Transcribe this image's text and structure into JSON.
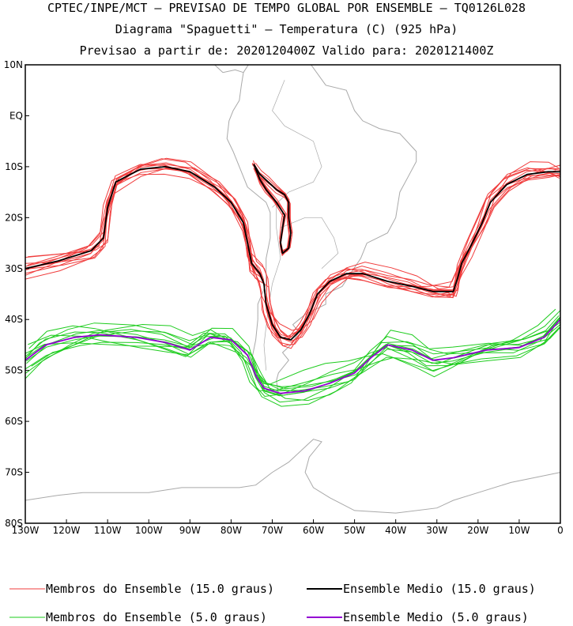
{
  "header": {
    "line1": "CPTEC/INPE/MCT — PREVISAO DE TEMPO GLOBAL POR ENSEMBLE — TQ0126L028",
    "line2": "Diagrama \"Spaguetti\" — Temperatura (C) (925 hPa)",
    "line3": "Previsao a partir de: 2020120400Z  Valido para: 2020121400Z"
  },
  "colors": {
    "members_15": "#f03c3c",
    "mean_15": "#000000",
    "members_5": "#1ecc1e",
    "mean_5": "#9400d3",
    "land": "#a9a9a9"
  },
  "chart_data": {
    "type": "line",
    "map_extent": {
      "lon": [
        -130,
        0
      ],
      "lat": [
        -80,
        10
      ]
    },
    "x_ticks": [
      {
        "value": -130,
        "label": "130W"
      },
      {
        "value": -120,
        "label": "120W"
      },
      {
        "value": -110,
        "label": "110W"
      },
      {
        "value": -100,
        "label": "100W"
      },
      {
        "value": -90,
        "label": "90W"
      },
      {
        "value": -80,
        "label": "80W"
      },
      {
        "value": -70,
        "label": "70W"
      },
      {
        "value": -60,
        "label": "60W"
      },
      {
        "value": -50,
        "label": "50W"
      },
      {
        "value": -40,
        "label": "40W"
      },
      {
        "value": -30,
        "label": "30W"
      },
      {
        "value": -20,
        "label": "20W"
      },
      {
        "value": -10,
        "label": "10W"
      },
      {
        "value": 0,
        "label": "0"
      }
    ],
    "y_ticks": [
      {
        "value": 10,
        "label": "10N"
      },
      {
        "value": 0,
        "label": "EQ"
      },
      {
        "value": -10,
        "label": "10S"
      },
      {
        "value": -20,
        "label": "20S"
      },
      {
        "value": -30,
        "label": "30S"
      },
      {
        "value": -40,
        "label": "40S"
      },
      {
        "value": -50,
        "label": "50S"
      },
      {
        "value": -60,
        "label": "60S"
      },
      {
        "value": -70,
        "label": "70S"
      },
      {
        "value": -80,
        "label": "80S"
      }
    ],
    "series": [
      {
        "name": "Ensemble Medio (15.0 graus)",
        "points": [
          [
            -130,
            -30
          ],
          [
            -122,
            -28.5
          ],
          [
            -114,
            -26.5
          ],
          [
            -111,
            -24
          ],
          [
            -110,
            -18
          ],
          [
            -108,
            -13
          ],
          [
            -102,
            -10.5
          ],
          [
            -96,
            -10
          ],
          [
            -90,
            -11
          ],
          [
            -84,
            -14
          ],
          [
            -80,
            -17
          ],
          [
            -77,
            -21
          ],
          [
            -76,
            -25
          ],
          [
            -75,
            -29
          ],
          [
            -73,
            -31
          ],
          [
            -72,
            -33
          ],
          [
            -71.5,
            -37
          ],
          [
            -70,
            -41
          ],
          [
            -68,
            -43.5
          ],
          [
            -65.5,
            -44
          ],
          [
            -63,
            -42
          ],
          [
            -61,
            -39
          ],
          [
            -59,
            -35
          ],
          [
            -56,
            -32.5
          ],
          [
            -52,
            -31
          ],
          [
            -48,
            -31
          ],
          [
            -42,
            -32.5
          ],
          [
            -36,
            -33.5
          ],
          [
            -31,
            -34.5
          ],
          [
            -26,
            -34.5
          ],
          [
            -25,
            -32
          ],
          [
            -24,
            -29
          ],
          [
            -22,
            -26
          ],
          [
            -19,
            -21
          ],
          [
            -17,
            -17
          ],
          [
            -13,
            -13.5
          ],
          [
            -8,
            -11.5
          ],
          [
            -3,
            -11
          ],
          [
            0,
            -11
          ]
        ]
      },
      {
        "name": "Ensemble Medio (15.0 graus)",
        "points": [
          [
            -74.5,
            -9.5
          ],
          [
            -73,
            -11.5
          ],
          [
            -71,
            -13
          ],
          [
            -69,
            -14.5
          ],
          [
            -67,
            -15.5
          ],
          [
            -66,
            -17
          ],
          [
            -66,
            -20
          ],
          [
            -65.5,
            -23
          ],
          [
            -66,
            -26
          ],
          [
            -67.5,
            -27
          ],
          [
            -68,
            -25
          ],
          [
            -67.5,
            -22
          ],
          [
            -67,
            -19.5
          ],
          [
            -69,
            -17
          ],
          [
            -71.5,
            -14.5
          ],
          [
            -73,
            -12.5
          ],
          [
            -74.5,
            -9.5
          ]
        ]
      },
      {
        "name": "Ensemble Medio (5.0 graus)",
        "points": [
          [
            -130,
            -48
          ],
          [
            -125,
            -45
          ],
          [
            -118,
            -43.5
          ],
          [
            -112,
            -43
          ],
          [
            -103,
            -43.5
          ],
          [
            -96,
            -44.5
          ],
          [
            -90,
            -46
          ],
          [
            -85,
            -43.5
          ],
          [
            -80,
            -44
          ],
          [
            -76,
            -47
          ],
          [
            -74,
            -51
          ],
          [
            -72,
            -53.5
          ],
          [
            -68,
            -54.5
          ],
          [
            -62,
            -54
          ],
          [
            -56,
            -52.5
          ],
          [
            -50,
            -50.5
          ],
          [
            -46,
            -47.5
          ],
          [
            -42,
            -45
          ],
          [
            -36,
            -46
          ],
          [
            -31,
            -48
          ],
          [
            -26,
            -47.5
          ],
          [
            -18,
            -46
          ],
          [
            -10,
            -45.5
          ],
          [
            -4,
            -43.5
          ],
          [
            0,
            -40
          ]
        ]
      }
    ]
  },
  "legend": [
    {
      "label": "Membros do Ensemble (15.0 graus)",
      "color": "#f03c3c",
      "width": 1
    },
    {
      "label": "Ensemble Medio (15.0 graus)",
      "color": "#000000",
      "width": 2
    },
    {
      "label": "Membros do Ensemble (5.0 graus)",
      "color": "#1ecc1e",
      "width": 1
    },
    {
      "label": "Ensemble Medio (5.0 graus)",
      "color": "#9400d3",
      "width": 2
    }
  ]
}
